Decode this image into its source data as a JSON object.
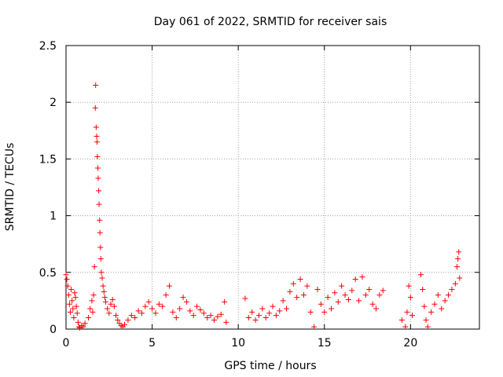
{
  "colors": {
    "series": "#ff0000",
    "axis": "#000000",
    "grid": "#a0a0a0",
    "background": "#ffffff"
  },
  "chart_data": {
    "type": "scatter",
    "title": "Day 061 of 2022, SRMTID for receiver sais",
    "xlabel": "GPS time / hours",
    "ylabel": "SRMTID / TECUs",
    "xlim": [
      0,
      24
    ],
    "ylim": [
      0,
      2.5
    ],
    "xticks": [
      "0",
      "5",
      "10",
      "15",
      "20"
    ],
    "xtick_values": [
      0,
      5,
      10,
      15,
      20
    ],
    "yticks": [
      "0",
      "0.5",
      "1",
      "1.5",
      "2",
      "2.5"
    ],
    "ytick_values": [
      0,
      0.5,
      1,
      1.5,
      2,
      2.5
    ],
    "grid": true,
    "marker": "+",
    "series": [
      {
        "name": "SRMTID",
        "points": [
          [
            0.0,
            0.48
          ],
          [
            0.05,
            0.44
          ],
          [
            0.1,
            0.38
          ],
          [
            0.15,
            0.3
          ],
          [
            0.2,
            0.22
          ],
          [
            0.25,
            0.15
          ],
          [
            0.3,
            0.35
          ],
          [
            0.35,
            0.25
          ],
          [
            0.4,
            0.18
          ],
          [
            0.45,
            0.1
          ],
          [
            0.5,
            0.32
          ],
          [
            0.55,
            0.28
          ],
          [
            0.6,
            0.2
          ],
          [
            0.65,
            0.14
          ],
          [
            0.7,
            0.06
          ],
          [
            0.75,
            0.02
          ],
          [
            0.8,
            0.01
          ],
          [
            0.9,
            0.03
          ],
          [
            1.0,
            0.02
          ],
          [
            1.1,
            0.05
          ],
          [
            1.3,
            0.1
          ],
          [
            1.4,
            0.18
          ],
          [
            1.5,
            0.25
          ],
          [
            1.55,
            0.15
          ],
          [
            1.6,
            0.3
          ],
          [
            1.65,
            0.55
          ],
          [
            1.7,
            1.95
          ],
          [
            1.72,
            2.15
          ],
          [
            1.75,
            1.78
          ],
          [
            1.78,
            1.7
          ],
          [
            1.8,
            1.65
          ],
          [
            1.82,
            1.52
          ],
          [
            1.85,
            1.42
          ],
          [
            1.87,
            1.33
          ],
          [
            1.9,
            1.22
          ],
          [
            1.92,
            1.1
          ],
          [
            1.95,
            0.96
          ],
          [
            1.97,
            0.85
          ],
          [
            2.0,
            0.72
          ],
          [
            2.02,
            0.62
          ],
          [
            2.05,
            0.5
          ],
          [
            2.1,
            0.45
          ],
          [
            2.15,
            0.38
          ],
          [
            2.2,
            0.33
          ],
          [
            2.25,
            0.28
          ],
          [
            2.3,
            0.24
          ],
          [
            2.4,
            0.18
          ],
          [
            2.5,
            0.14
          ],
          [
            2.6,
            0.22
          ],
          [
            2.7,
            0.26
          ],
          [
            2.8,
            0.2
          ],
          [
            2.9,
            0.12
          ],
          [
            3.0,
            0.08
          ],
          [
            3.1,
            0.05
          ],
          [
            3.2,
            0.03
          ],
          [
            3.3,
            0.02
          ],
          [
            3.4,
            0.04
          ],
          [
            3.6,
            0.08
          ],
          [
            3.8,
            0.12
          ],
          [
            4.0,
            0.1
          ],
          [
            4.2,
            0.16
          ],
          [
            4.4,
            0.14
          ],
          [
            4.6,
            0.2
          ],
          [
            4.8,
            0.24
          ],
          [
            5.0,
            0.18
          ],
          [
            5.2,
            0.14
          ],
          [
            5.4,
            0.22
          ],
          [
            5.6,
            0.2
          ],
          [
            5.8,
            0.3
          ],
          [
            6.0,
            0.38
          ],
          [
            6.2,
            0.15
          ],
          [
            6.4,
            0.1
          ],
          [
            6.6,
            0.18
          ],
          [
            6.8,
            0.28
          ],
          [
            7.0,
            0.24
          ],
          [
            7.2,
            0.16
          ],
          [
            7.4,
            0.12
          ],
          [
            7.6,
            0.2
          ],
          [
            7.8,
            0.17
          ],
          [
            8.0,
            0.14
          ],
          [
            8.2,
            0.1
          ],
          [
            8.4,
            0.12
          ],
          [
            8.6,
            0.08
          ],
          [
            8.8,
            0.11
          ],
          [
            9.0,
            0.13
          ],
          [
            9.2,
            0.24
          ],
          [
            9.3,
            0.06
          ],
          [
            10.4,
            0.27
          ],
          [
            10.6,
            0.1
          ],
          [
            10.8,
            0.15
          ],
          [
            11.0,
            0.08
          ],
          [
            11.2,
            0.12
          ],
          [
            11.4,
            0.18
          ],
          [
            11.6,
            0.1
          ],
          [
            11.8,
            0.14
          ],
          [
            12.0,
            0.2
          ],
          [
            12.2,
            0.12
          ],
          [
            12.4,
            0.16
          ],
          [
            12.6,
            0.25
          ],
          [
            12.8,
            0.18
          ],
          [
            13.0,
            0.33
          ],
          [
            13.2,
            0.4
          ],
          [
            13.4,
            0.28
          ],
          [
            13.6,
            0.44
          ],
          [
            13.8,
            0.3
          ],
          [
            14.0,
            0.38
          ],
          [
            14.2,
            0.15
          ],
          [
            14.4,
            0.02
          ],
          [
            14.6,
            0.35
          ],
          [
            14.8,
            0.22
          ],
          [
            15.0,
            0.15
          ],
          [
            15.2,
            0.28
          ],
          [
            15.4,
            0.18
          ],
          [
            15.6,
            0.32
          ],
          [
            15.8,
            0.24
          ],
          [
            16.0,
            0.38
          ],
          [
            16.2,
            0.3
          ],
          [
            16.4,
            0.26
          ],
          [
            16.6,
            0.34
          ],
          [
            16.8,
            0.44
          ],
          [
            17.0,
            0.25
          ],
          [
            17.2,
            0.46
          ],
          [
            17.4,
            0.3
          ],
          [
            17.6,
            0.35
          ],
          [
            17.8,
            0.22
          ],
          [
            18.0,
            0.18
          ],
          [
            18.2,
            0.3
          ],
          [
            18.4,
            0.34
          ],
          [
            19.5,
            0.08
          ],
          [
            19.7,
            0.02
          ],
          [
            19.8,
            0.15
          ],
          [
            19.9,
            0.38
          ],
          [
            20.0,
            0.28
          ],
          [
            20.1,
            0.12
          ],
          [
            20.6,
            0.48
          ],
          [
            20.7,
            0.35
          ],
          [
            20.8,
            0.2
          ],
          [
            20.9,
            0.08
          ],
          [
            21.0,
            0.02
          ],
          [
            21.2,
            0.15
          ],
          [
            21.4,
            0.22
          ],
          [
            21.6,
            0.3
          ],
          [
            21.8,
            0.18
          ],
          [
            22.0,
            0.25
          ],
          [
            22.2,
            0.3
          ],
          [
            22.4,
            0.35
          ],
          [
            22.6,
            0.4
          ],
          [
            22.7,
            0.55
          ],
          [
            22.75,
            0.62
          ],
          [
            22.8,
            0.68
          ],
          [
            22.85,
            0.45
          ]
        ]
      }
    ]
  }
}
